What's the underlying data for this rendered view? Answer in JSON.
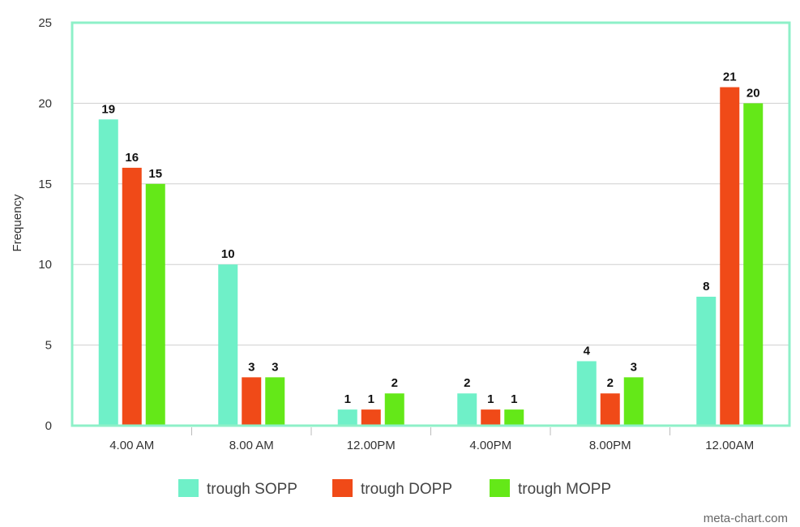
{
  "chart_data": {
    "type": "bar",
    "ylabel": "Frequency",
    "xlabel": "",
    "ylim": [
      0,
      25
    ],
    "yticks": [
      0,
      5,
      10,
      15,
      20,
      25
    ],
    "grid": true,
    "legend_position": "bottom",
    "categories": [
      "4.00 AM",
      "8.00 AM",
      "12.00PM",
      "4.00PM",
      "8.00PM",
      "12.00AM"
    ],
    "series": [
      {
        "name": "trough SOPP",
        "color": "#6ff0c8",
        "values": [
          19,
          10,
          1,
          2,
          4,
          8
        ]
      },
      {
        "name": "trough DOPP",
        "color": "#f04a18",
        "values": [
          16,
          3,
          1,
          1,
          2,
          21
        ]
      },
      {
        "name": "trough MOPP",
        "color": "#64e818",
        "values": [
          15,
          3,
          2,
          1,
          3,
          20
        ]
      }
    ],
    "frame_color": "#8ef0c8",
    "grid_color": "#cfcfcf"
  },
  "watermark": "meta-chart.com"
}
